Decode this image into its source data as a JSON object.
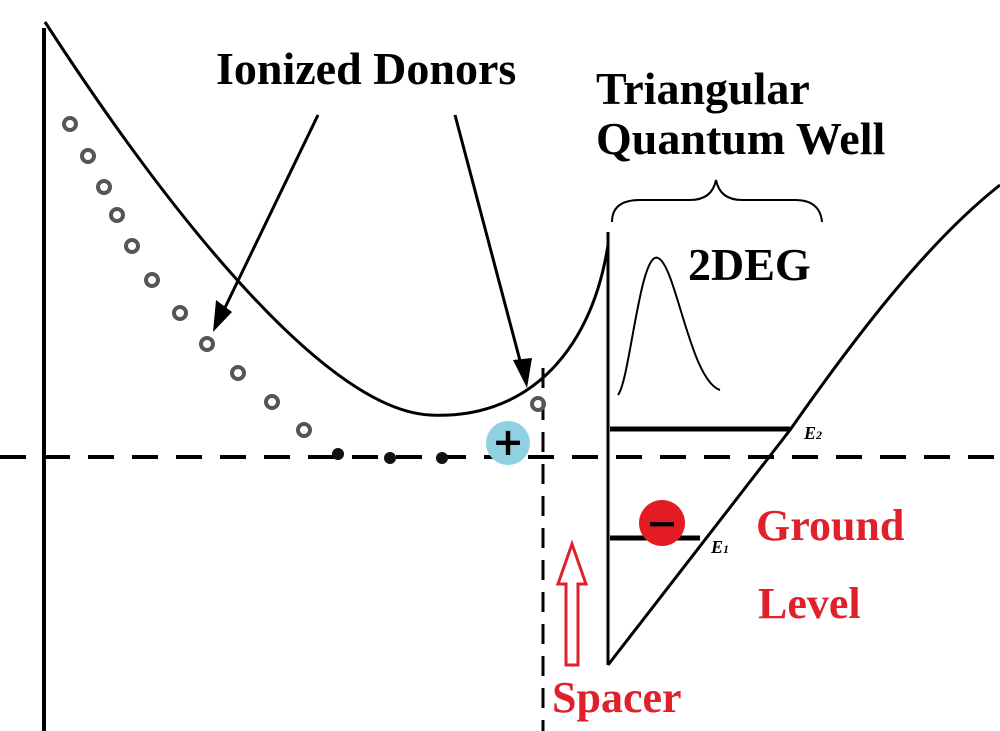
{
  "labels": {
    "ionized_donors": "Ionized Donors",
    "triangular_line1": "Triangular",
    "triangular_line2": "Quantum Well",
    "twodeg": "2DEG",
    "e2_main": "E",
    "e2_sub": "2",
    "e1_main": "E",
    "e1_sub": "1",
    "ground_line1": "Ground",
    "ground_line2": "Level",
    "spacer": "Spacer"
  },
  "symbols": {
    "positive_charge": "+",
    "negative_charge": "−"
  },
  "colors": {
    "red_label": "#e0202a",
    "positive_marker": "#8fd0e2",
    "negative_marker": "#e31b23",
    "curve": "#000000"
  }
}
